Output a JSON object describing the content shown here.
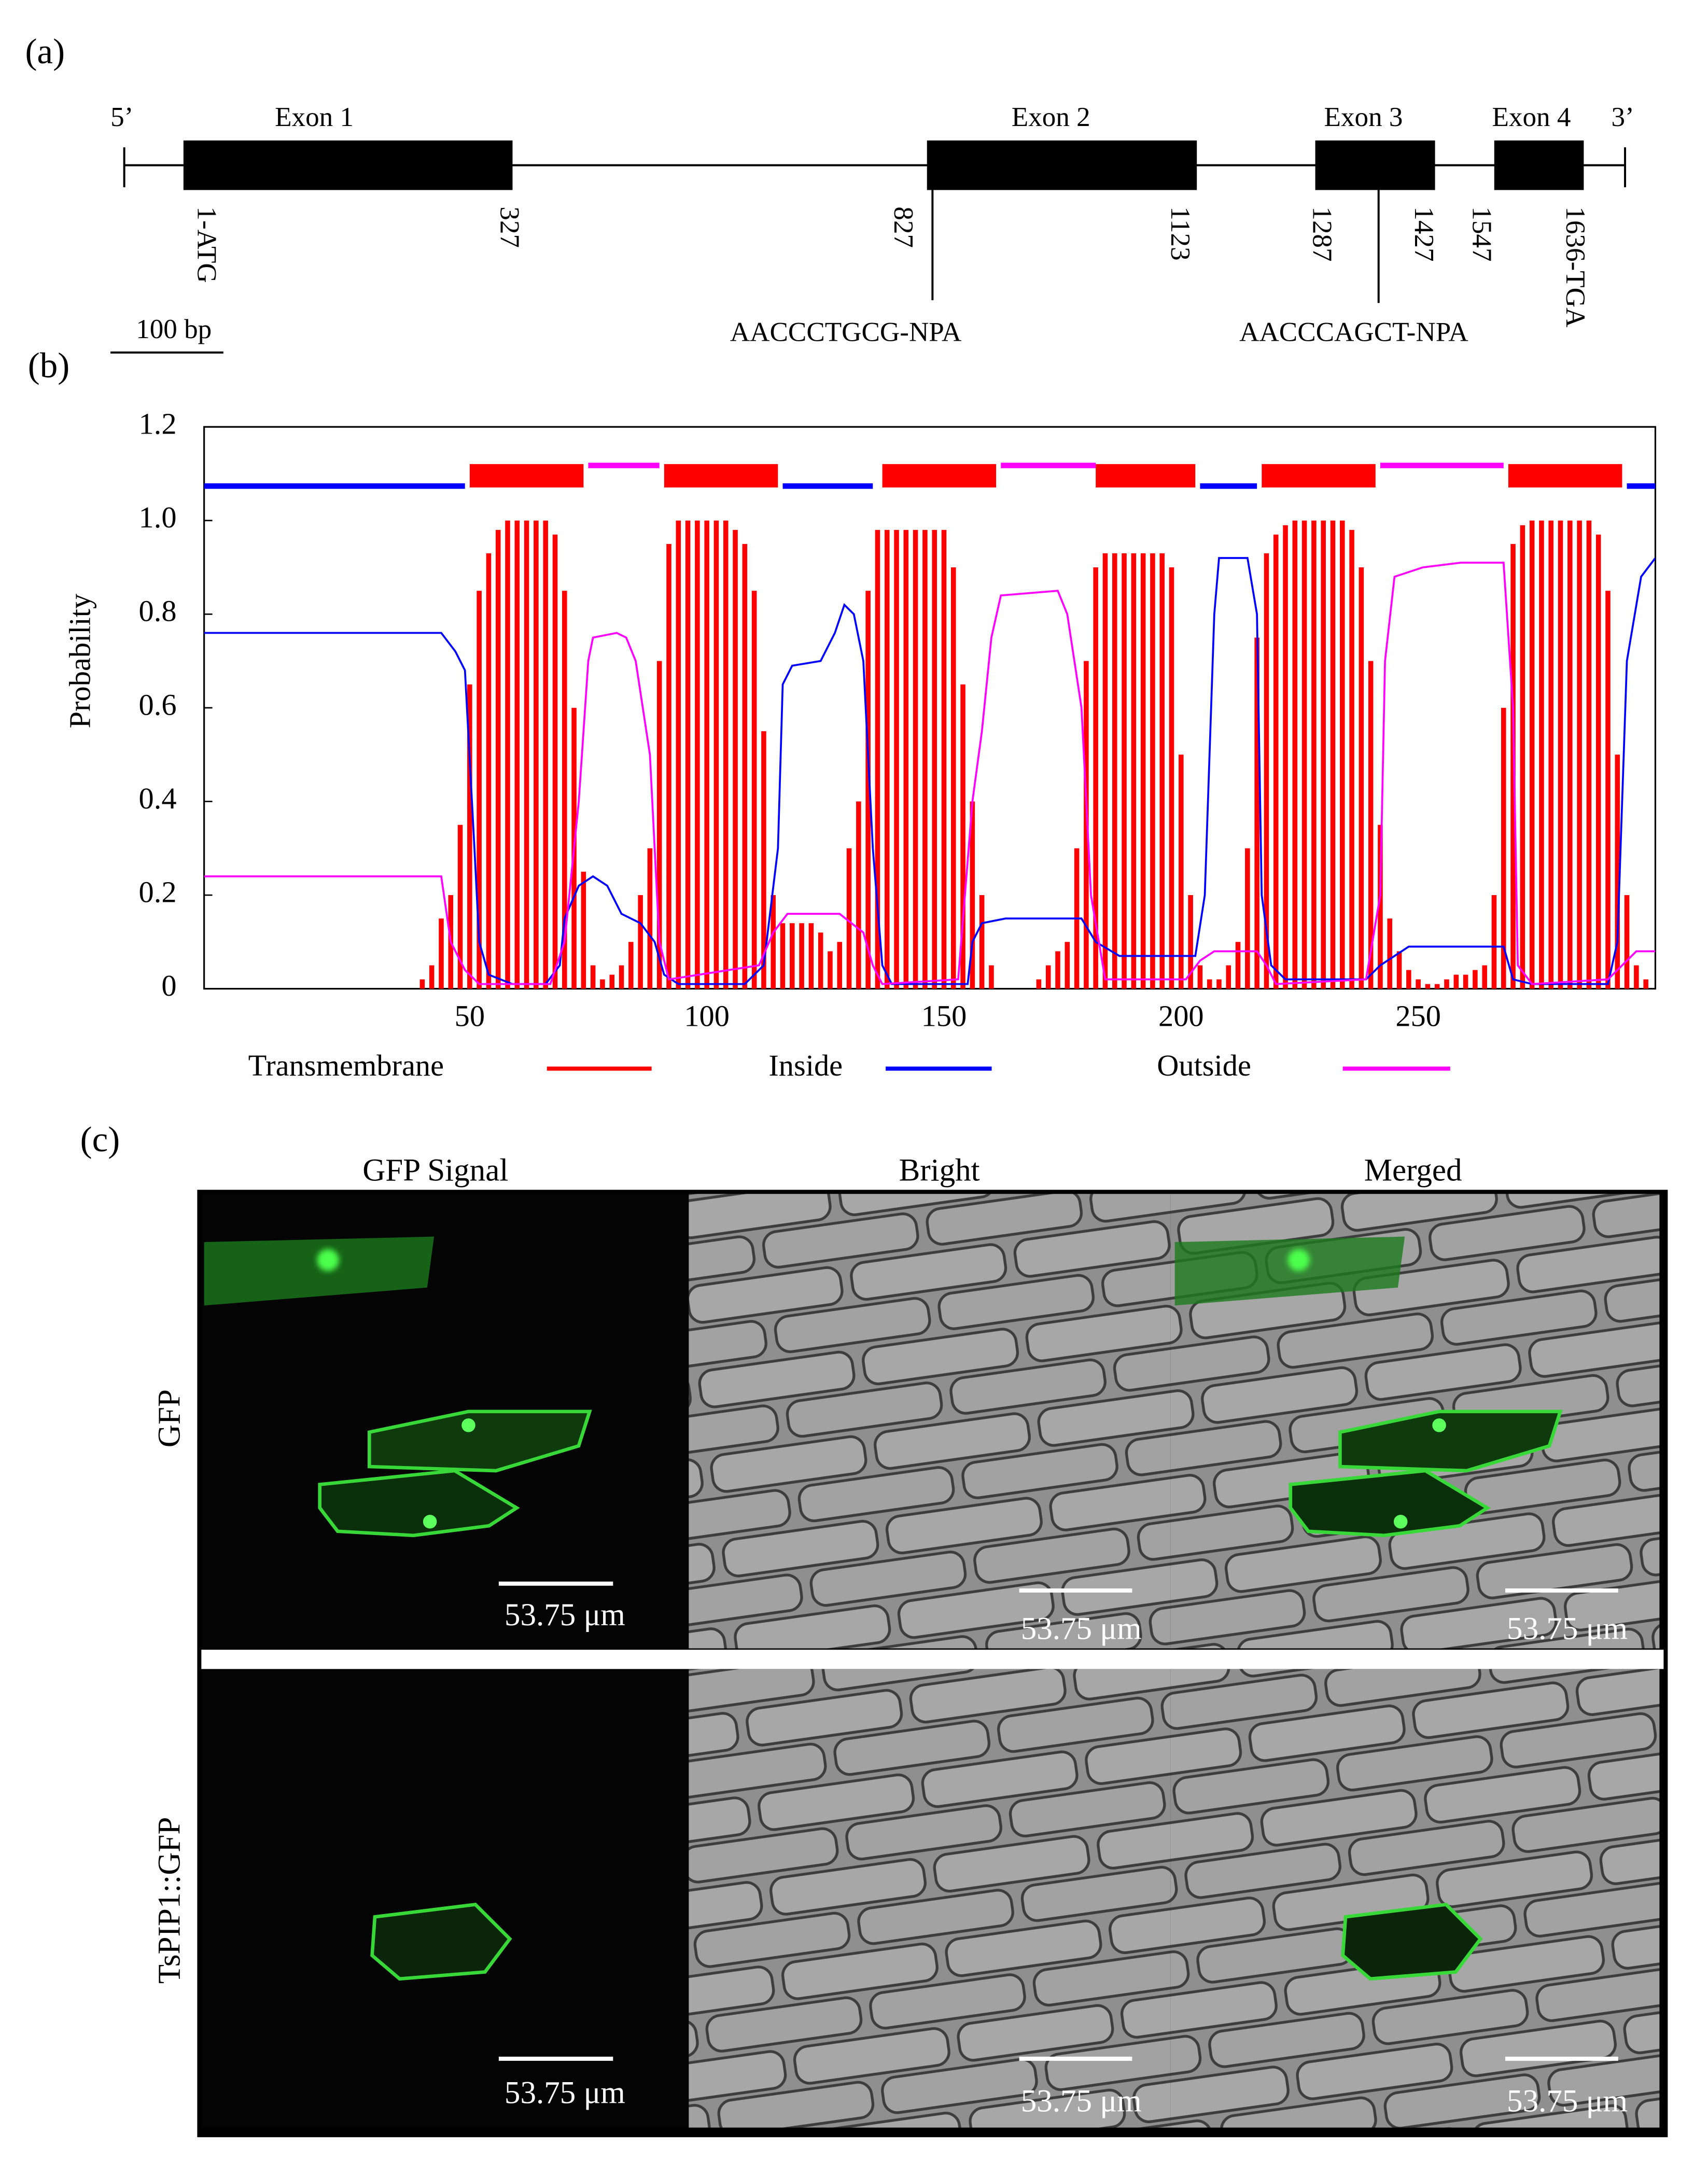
{
  "panel_a": {
    "label": "(a)",
    "five_end": "5’",
    "three_end": "3’",
    "exons": [
      "Exon 1",
      "Exon 2",
      "Exon 3",
      "Exon 4"
    ],
    "positions": [
      "1-ATG",
      "327",
      "827",
      "1123",
      "1287",
      "1427",
      "1547",
      "1636-TGA"
    ],
    "motifs": [
      "AACCCTGCG-NPA",
      "AACCCAGCT-NPA"
    ],
    "scale": "100 bp"
  },
  "panel_b": {
    "label": "(b)"
  },
  "chart_data": {
    "type": "line",
    "y_label": "Probability",
    "xlim": [
      -6,
      300
    ],
    "ylim": [
      0,
      1.2
    ],
    "xticks": [
      50,
      100,
      150,
      200,
      250
    ],
    "yticks": [
      0,
      0.2,
      0.4,
      0.6,
      0.8,
      {
        "value": 1,
        "label": "1.0"
      },
      1.2
    ],
    "legend": "bottom",
    "series": [
      {
        "name": "Transmembrane",
        "type": "bar",
        "color": "#ff0000",
        "x": [
          40,
          42,
          44,
          46,
          48,
          50,
          52,
          54,
          56,
          58,
          60,
          62,
          64,
          66,
          68,
          70,
          72,
          74,
          76,
          78,
          80,
          82,
          84,
          86,
          88,
          90,
          92,
          94,
          96,
          98,
          100,
          102,
          104,
          106,
          108,
          110,
          112,
          114,
          116,
          118,
          120,
          122,
          124,
          126,
          128,
          130,
          132,
          134,
          136,
          138,
          140,
          142,
          144,
          146,
          148,
          150,
          152,
          154,
          156,
          158,
          160,
          162,
          164,
          166,
          168,
          170,
          172,
          174,
          176,
          178,
          180,
          182,
          184,
          186,
          188,
          190,
          192,
          194,
          196,
          198,
          200,
          202,
          204,
          206,
          208,
          210,
          212,
          214,
          216,
          218,
          220,
          222,
          224,
          226,
          228,
          230,
          232,
          234,
          236,
          238,
          240,
          242,
          244,
          246,
          248,
          250,
          252,
          254,
          256,
          258,
          260,
          262,
          264,
          266,
          268,
          270,
          272,
          274,
          276,
          278,
          280,
          282,
          284,
          286,
          288,
          290,
          292,
          294,
          296,
          298
        ],
        "values": [
          0.02,
          0.05,
          0.15,
          0.2,
          0.35,
          0.65,
          0.85,
          0.93,
          0.98,
          1,
          1,
          1,
          1,
          1,
          0.97,
          0.85,
          0.6,
          0.25,
          0.05,
          0.02,
          0.03,
          0.05,
          0.1,
          0.2,
          0.3,
          0.7,
          0.95,
          1,
          1,
          1,
          1,
          1,
          1,
          0.98,
          0.95,
          0.85,
          0.55,
          0.2,
          0.14,
          0.14,
          0.14,
          0.14,
          0.12,
          0.08,
          0.1,
          0.3,
          0.4,
          0.85,
          0.98,
          0.98,
          0.98,
          0.98,
          0.98,
          0.98,
          0.98,
          0.98,
          0.9,
          0.65,
          0.4,
          0.2,
          0.05,
          0,
          0,
          0,
          0,
          0.02,
          0.05,
          0.08,
          0.1,
          0.3,
          0.7,
          0.9,
          0.93,
          0.93,
          0.93,
          0.93,
          0.93,
          0.93,
          0.93,
          0.9,
          0.5,
          0.2,
          0.05,
          0.02,
          0.02,
          0.05,
          0.1,
          0.3,
          0.75,
          0.93,
          0.97,
          0.99,
          1,
          1,
          1,
          1,
          1,
          1,
          0.98,
          0.9,
          0.7,
          0.35,
          0.15,
          0.08,
          0.04,
          0.02,
          0.01,
          0.01,
          0.02,
          0.03,
          0.03,
          0.04,
          0.05,
          0.2,
          0.6,
          0.95,
          0.99,
          1,
          1,
          1,
          1,
          1,
          1,
          1,
          0.97,
          0.85,
          0.5,
          0.2,
          0.05,
          0.02
        ],
        "segments": [
          [
            50,
            74
          ],
          [
            91,
            115
          ],
          [
            137,
            161
          ],
          [
            182,
            203
          ],
          [
            217,
            241
          ],
          [
            269,
            293
          ]
        ]
      },
      {
        "name": "Inside",
        "color": "#0000ff",
        "x": [
          -6,
          44,
          47,
          49,
          51,
          52,
          54,
          59,
          66,
          69,
          70,
          73,
          76,
          79,
          82,
          86,
          89,
          91,
          94,
          108,
          112,
          115,
          116,
          118,
          124,
          127,
          129,
          131,
          133,
          135,
          137,
          139,
          155,
          156,
          158,
          163,
          179,
          182,
          187,
          203,
          205,
          207,
          208,
          214,
          216,
          217,
          219,
          222,
          239,
          242,
          245,
          248,
          268,
          270,
          274,
          290,
          292,
          294,
          297,
          300
        ],
        "values": [
          0.76,
          0.76,
          0.72,
          0.68,
          0.3,
          0.1,
          0.03,
          0.01,
          0.01,
          0.05,
          0.15,
          0.22,
          0.24,
          0.22,
          0.16,
          0.14,
          0.1,
          0.03,
          0.01,
          0.01,
          0.05,
          0.3,
          0.65,
          0.69,
          0.7,
          0.76,
          0.82,
          0.8,
          0.7,
          0.3,
          0.05,
          0.01,
          0.01,
          0.1,
          0.14,
          0.15,
          0.15,
          0.1,
          0.07,
          0.07,
          0.2,
          0.8,
          0.92,
          0.92,
          0.8,
          0.2,
          0.05,
          0.02,
          0.02,
          0.05,
          0.07,
          0.09,
          0.09,
          0.02,
          0.01,
          0.01,
          0.1,
          0.7,
          0.88,
          0.92
        ],
        "segments": [
          [
            -6,
            49
          ],
          [
            116,
            135
          ],
          [
            204,
            216
          ],
          [
            294,
            300
          ]
        ]
      },
      {
        "name": "Outside",
        "color": "#ff00ff",
        "x": [
          -6,
          44,
          46,
          49,
          52,
          67,
          70,
          73,
          75,
          76,
          81,
          83,
          85,
          88,
          90,
          92,
          111,
          114,
          117,
          128,
          133,
          135,
          137,
          153,
          156,
          158,
          160,
          162,
          174,
          176,
          179,
          181,
          184,
          201,
          204,
          207,
          216,
          218,
          220,
          239,
          242,
          243,
          245,
          251,
          259,
          268,
          270,
          271,
          274,
          290,
          293,
          296,
          300
        ],
        "values": [
          0.24,
          0.24,
          0.1,
          0.04,
          0.01,
          0.01,
          0.1,
          0.4,
          0.7,
          0.75,
          0.76,
          0.75,
          0.7,
          0.5,
          0.1,
          0.02,
          0.05,
          0.12,
          0.16,
          0.16,
          0.12,
          0.05,
          0.01,
          0.02,
          0.4,
          0.55,
          0.75,
          0.84,
          0.85,
          0.8,
          0.6,
          0.2,
          0.02,
          0.02,
          0.06,
          0.08,
          0.08,
          0.05,
          0.01,
          0.02,
          0.2,
          0.7,
          0.88,
          0.9,
          0.91,
          0.91,
          0.6,
          0.05,
          0.01,
          0.02,
          0.05,
          0.08,
          0.08
        ],
        "segments": [
          [
            75,
            90
          ],
          [
            162,
            182
          ],
          [
            242,
            268
          ]
        ]
      }
    ]
  },
  "panel_c": {
    "label": "(c)",
    "columns": [
      "GFP Signal",
      "Bright",
      "Merged"
    ],
    "rows": [
      "GFP",
      "TsPIP1::GFP"
    ],
    "scale_bars": [
      "53.75 μm",
      "53.75 μm",
      "53.75 μm",
      "53.75 μm",
      "53.75 μm",
      "53.75 μm"
    ]
  }
}
